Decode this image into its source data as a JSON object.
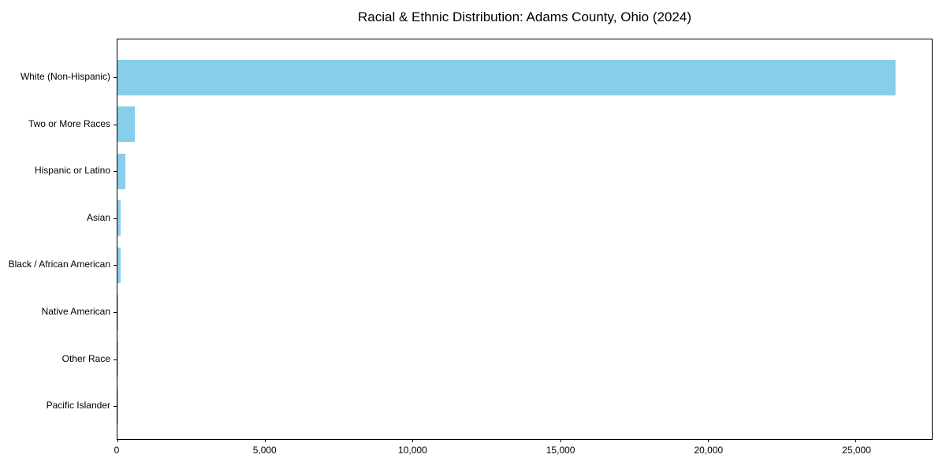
{
  "chart_data": {
    "type": "bar",
    "orientation": "horizontal",
    "title": "Racial & Ethnic Distribution: Adams County, Ohio (2024)",
    "categories": [
      "White (Non-Hispanic)",
      "Two or More Races",
      "Hispanic or Latino",
      "Asian",
      "Black / African American",
      "Native American",
      "Other Race",
      "Pacific Islander"
    ],
    "values": [
      26330,
      600,
      265,
      115,
      110,
      35,
      20,
      5
    ],
    "xlabel": "",
    "ylabel": "",
    "xlim": [
      0,
      27570
    ],
    "x_ticks": [
      0,
      5000,
      10000,
      15000,
      20000,
      25000
    ],
    "x_tick_labels": [
      "0",
      "5,000",
      "10,000",
      "15,000",
      "20,000",
      "25,000"
    ],
    "bar_color": "#87CEEB",
    "axis_color": "#000000",
    "text_color": "#000000",
    "grid": false,
    "legend": "none"
  }
}
